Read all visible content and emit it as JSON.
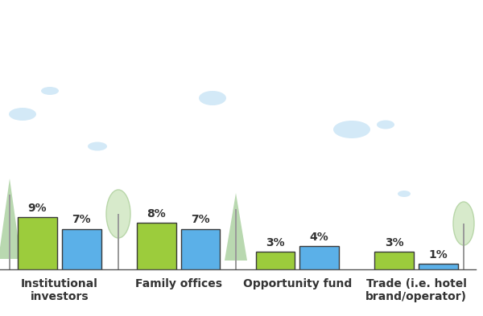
{
  "chart_data": {
    "type": "bar",
    "categories": [
      "Institutional investors",
      "Family offices",
      "Opportunity fund",
      "Trade (i.e. hotel brand/operator)"
    ],
    "series": [
      {
        "color": "#9ccc3c",
        "values": [
          9,
          8,
          3,
          3
        ],
        "value_labels": [
          "9%",
          "8%",
          "3%",
          "3%"
        ]
      },
      {
        "color": "#5bb0e8",
        "values": [
          7,
          7,
          4,
          1
        ],
        "value_labels": [
          "7%",
          "7%",
          "4%",
          "1%"
        ]
      }
    ],
    "data_labels": true,
    "tick_labels": "x",
    "grid": false
  }
}
